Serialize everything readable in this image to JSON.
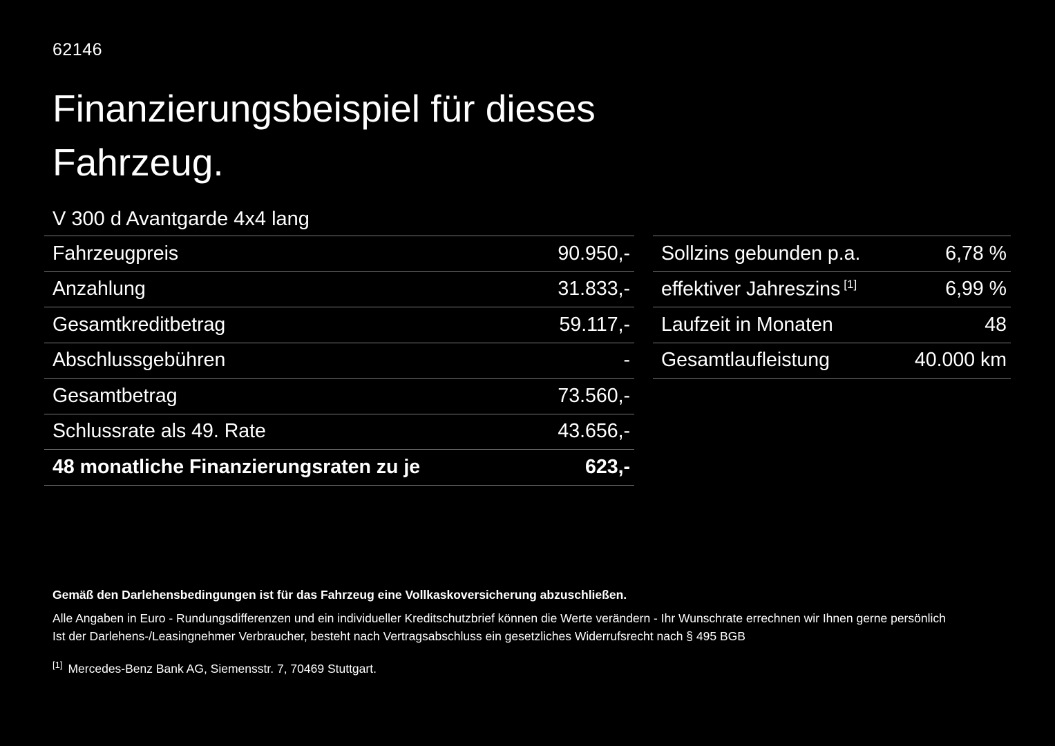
{
  "page": {
    "id_number": "62146",
    "title_line1": "Finanzierungsbeispiel für dieses",
    "title_line2": "Fahrzeug.",
    "vehicle_name": "V 300 d Avantgarde 4x4 lang"
  },
  "left_table": {
    "rows": [
      {
        "label": "Fahrzeugpreis",
        "value": "90.950,-"
      },
      {
        "label": "Anzahlung",
        "value": "31.833,-"
      },
      {
        "label": "Gesamtkreditbetrag",
        "value": "59.117,-"
      },
      {
        "label": "Abschlussgebühren",
        "value": "-"
      },
      {
        "label": "Gesamtbetrag",
        "value": "73.560,-"
      },
      {
        "label": "Schlussrate als 49. Rate",
        "value": "43.656,-"
      },
      {
        "label": "48 monatliche Finanzierungsraten zu je",
        "value": "623,-"
      }
    ]
  },
  "right_table": {
    "rows": [
      {
        "label": "Sollzins gebunden p.a.",
        "sup": "",
        "value": "6,78 %"
      },
      {
        "label": "effektiver Jahreszins",
        "sup": "[1]",
        "value": "6,99 %"
      },
      {
        "label": "Laufzeit in Monaten",
        "sup": "",
        "value": "48"
      },
      {
        "label": "Gesamtlaufleistung",
        "sup": "",
        "value": "40.000 km"
      }
    ]
  },
  "footnotes": {
    "bold_note": "Gemäß den Darlehensbedingungen ist für das Fahrzeug eine Vollkaskoversicherung abzuschließen.",
    "note1": "Alle Angaben in Euro - Rundungsdifferenzen und ein individueller Kreditschutzbrief können die Werte verändern - Ihr Wunschrate errechnen wir Ihnen gerne persönlich",
    "note2": "Ist der Darlehens-/Leasingnehmer Verbraucher, besteht nach Vertragsabschluss ein gesetzliches Widerrufsrecht nach § 495 BGB",
    "ref_marker": "[1]",
    "ref_text": "Mercedes-Benz Bank AG, Siemensstr. 7, 70469 Stuttgart."
  }
}
